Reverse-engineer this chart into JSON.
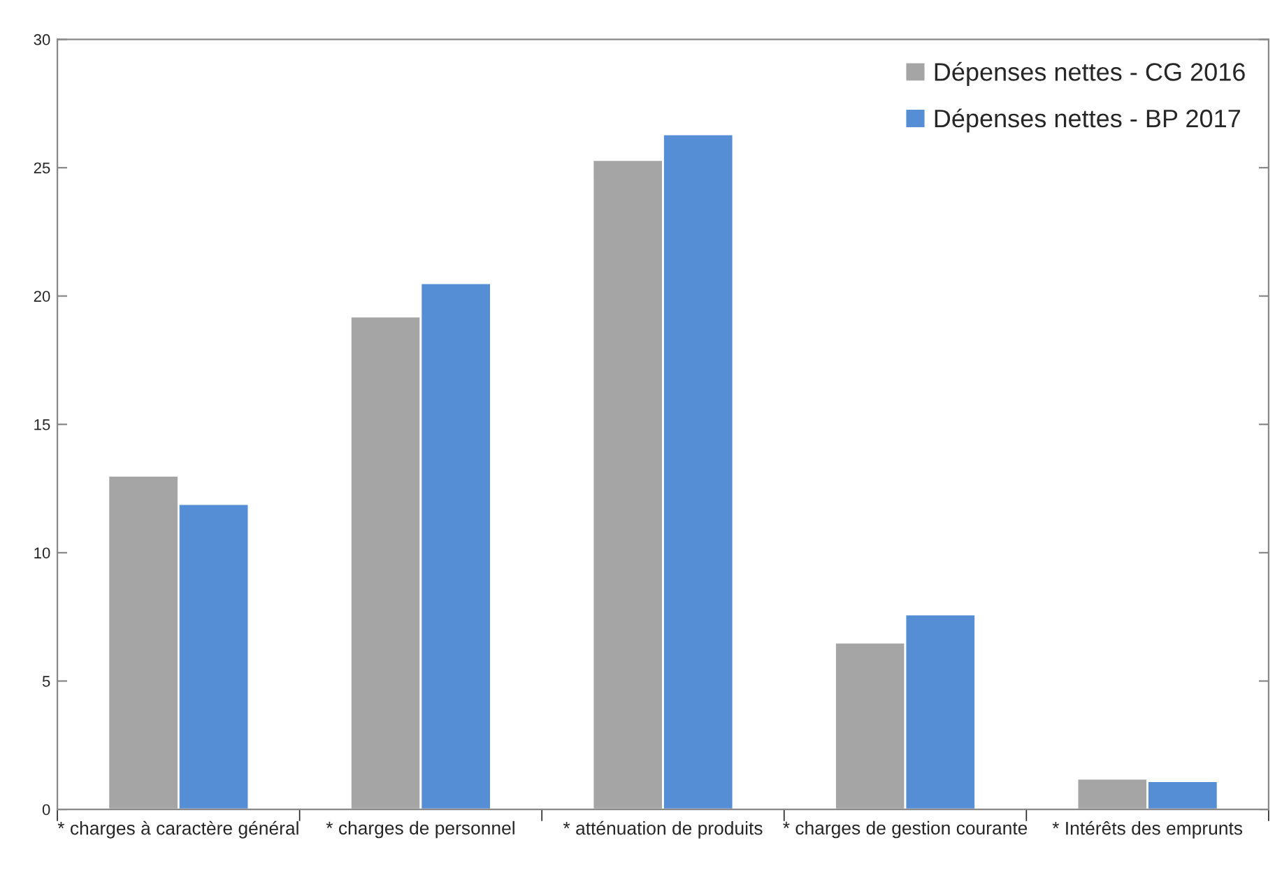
{
  "chart_data": {
    "type": "bar",
    "categories": [
      "* charges à caractère général",
      "* charges de personnel",
      "* atténuation de produits",
      "* charges de gestion courante",
      "* Intérêts des emprunts"
    ],
    "series": [
      {
        "name": "Dépenses nettes - CG 2016",
        "color": "#a5a5a5",
        "values": [
          13.0,
          19.2,
          25.3,
          6.5,
          1.2
        ]
      },
      {
        "name": "Dépenses nettes - BP 2017",
        "color": "#558ed5",
        "values": [
          11.9,
          20.5,
          26.3,
          7.6,
          1.1
        ]
      }
    ],
    "ylim": [
      0,
      30
    ],
    "yticks": [
      0,
      5,
      10,
      15,
      20,
      25,
      30
    ],
    "grid": false,
    "legend": "top right"
  }
}
